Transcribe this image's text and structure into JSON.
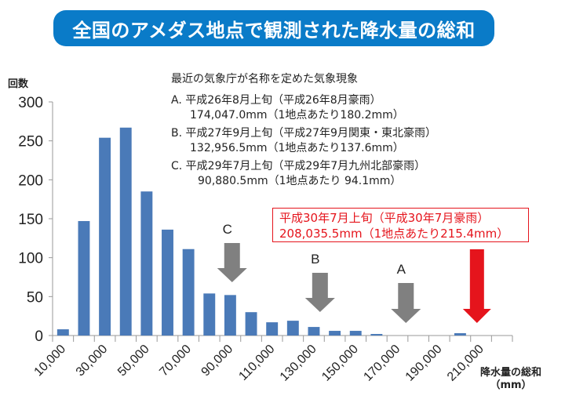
{
  "title": "全国のアメダス地点で観測された降水量の総和",
  "notes": {
    "heading": "最近の気象庁が名称を定めた気象現象",
    "items": [
      {
        "line1": "A. 平成26年8月上旬（平成26年8月豪雨）",
        "line2": "174,047.0mm（1地点あたり180.2mm）"
      },
      {
        "line1": "B. 平成27年9月上旬（平成27年9月関東・東北豪雨）",
        "line2": "132,956.5mm（1地点あたり137.6mm）"
      },
      {
        "line1": "C. 平成29年7月上旬（平成29年7月九州北部豪雨）",
        "line2": "90,880.5mm（1地点あたり 94.1mm）"
      }
    ],
    "highlight": {
      "line1": "平成30年7月上旬（平成30年7月豪雨）",
      "line2": "208,035.5mm（1地点あたり215.4mm）"
    }
  },
  "colors": {
    "bar": "#4a7ab8",
    "arrow": "#808080",
    "highlight": "#e5141c",
    "banner": "#0a7bc8"
  },
  "chart_data": {
    "type": "bar",
    "title": "全国のアメダス地点で観測された降水量の総和",
    "ylabel": "回数",
    "xlabel": "降水量の総和",
    "xlabel_unit": "（mm）",
    "ylim": [
      0,
      300
    ],
    "yticks": [
      "0",
      "50",
      "100",
      "150",
      "200",
      "250",
      "300"
    ],
    "bin_centers": [
      10000,
      20000,
      30000,
      40000,
      50000,
      60000,
      70000,
      80000,
      90000,
      100000,
      110000,
      120000,
      130000,
      140000,
      150000,
      160000,
      170000,
      180000,
      190000,
      200000,
      210000,
      220000
    ],
    "xtick_labels": [
      "10,000",
      "30,000",
      "50,000",
      "70,000",
      "90,000",
      "110,000",
      "130,000",
      "150,000",
      "170,000",
      "190,000",
      "210,000"
    ],
    "values": [
      8,
      147,
      254,
      267,
      185,
      136,
      111,
      54,
      52,
      30,
      17,
      19,
      11,
      6,
      6,
      2,
      0,
      0,
      0,
      3,
      0,
      0
    ],
    "grid": false,
    "annotations": [
      {
        "label": "C",
        "x": 90880.5,
        "color": "gray"
      },
      {
        "label": "B",
        "x": 132956.5,
        "color": "gray"
      },
      {
        "label": "A",
        "x": 174047.0,
        "color": "gray"
      },
      {
        "label": "",
        "x": 208035.5,
        "color": "red"
      }
    ]
  }
}
